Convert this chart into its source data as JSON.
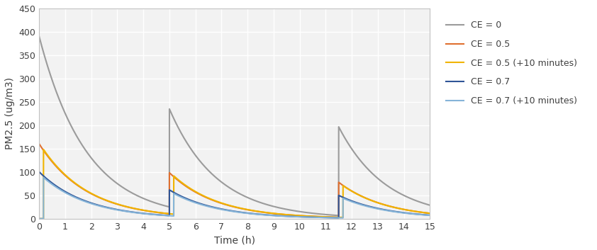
{
  "title": "",
  "xlabel": "Time (h)",
  "ylabel": "PM2.5 (ug/m3)",
  "xlim": [
    0,
    15
  ],
  "ylim": [
    0,
    450
  ],
  "yticks": [
    0,
    50,
    100,
    150,
    200,
    250,
    300,
    350,
    400,
    450
  ],
  "xticks": [
    0,
    1,
    2,
    3,
    4,
    5,
    6,
    7,
    8,
    9,
    10,
    11,
    12,
    13,
    14,
    15
  ],
  "series": [
    {
      "label": "CE = 0",
      "color": "#9B9B9B",
      "linewidth": 1.5,
      "events": [
        {
          "t_event": 0.0,
          "delay": 0.0,
          "peak_val": 390
        },
        {
          "t_event": 5.0,
          "delay": 0.0,
          "peak_val": 210
        },
        {
          "t_event": 11.5,
          "delay": 0.0,
          "peak_val": 190
        }
      ],
      "decay_rate": 0.55
    },
    {
      "label": "CE = 0.5",
      "color": "#E07030",
      "linewidth": 1.5,
      "events": [
        {
          "t_event": 0.0,
          "delay": 0.0,
          "peak_val": 160
        },
        {
          "t_event": 5.0,
          "delay": 0.0,
          "peak_val": 88
        },
        {
          "t_event": 11.5,
          "delay": 0.0,
          "peak_val": 75
        }
      ],
      "decay_rate": 0.55
    },
    {
      "label": "CE = 0.5 (+10 minutes)",
      "color": "#F0B400",
      "linewidth": 1.5,
      "events": [
        {
          "t_event": 0.0,
          "delay": 0.1667,
          "peak_val": 148
        },
        {
          "t_event": 5.0,
          "delay": 0.1667,
          "peak_val": 82
        },
        {
          "t_event": 11.5,
          "delay": 0.1667,
          "peak_val": 68
        }
      ],
      "decay_rate": 0.55
    },
    {
      "label": "CE = 0.7",
      "color": "#2F5597",
      "linewidth": 1.5,
      "events": [
        {
          "t_event": 0.0,
          "delay": 0.0,
          "peak_val": 100
        },
        {
          "t_event": 5.0,
          "delay": 0.0,
          "peak_val": 55
        },
        {
          "t_event": 11.5,
          "delay": 0.0,
          "peak_val": 48
        }
      ],
      "decay_rate": 0.55
    },
    {
      "label": "CE = 0.7 (+10 minutes)",
      "color": "#85B4D8",
      "linewidth": 1.5,
      "events": [
        {
          "t_event": 0.0,
          "delay": 0.1667,
          "peak_val": 88
        },
        {
          "t_event": 5.0,
          "delay": 0.1667,
          "peak_val": 48
        },
        {
          "t_event": 11.5,
          "delay": 0.1667,
          "peak_val": 42
        }
      ],
      "decay_rate": 0.55
    }
  ],
  "plot_bg_color": "#F2F2F2",
  "fig_bg_color": "#FFFFFF",
  "grid_color": "#FFFFFF",
  "grid_linewidth": 1.0,
  "figsize": [
    8.42,
    3.53
  ],
  "dpi": 100,
  "legend_fontsize": 9,
  "axis_fontsize": 10,
  "tick_fontsize": 9
}
